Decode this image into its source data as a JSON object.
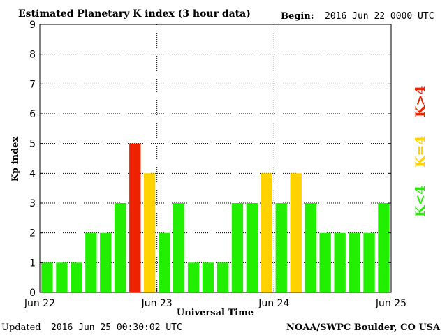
{
  "header": {
    "title": "Estimated Planetary K index (3 hour data)",
    "begin_label": "Begin:",
    "begin_value": "2016 Jun 22 0000 UTC"
  },
  "footer": {
    "updated_label": "Updated",
    "updated_value": "2016 Jun 25 00:30:02 UTC",
    "source": "NOAA/SWPC Boulder, CO USA"
  },
  "legend": {
    "low": "K<4",
    "mid": "K=4",
    "high": "K>4"
  },
  "colors": {
    "low": "#22ee00",
    "mid": "#ffd200",
    "high": "#ee2200"
  },
  "chart_data": {
    "type": "bar",
    "title": "Estimated Planetary K index (3 hour data)",
    "xlabel": "Universal Time",
    "ylabel": "Kp index",
    "ylim": [
      0,
      9
    ],
    "yticks": [
      "0",
      "1",
      "2",
      "3",
      "4",
      "5",
      "6",
      "7",
      "8",
      "9"
    ],
    "xticks": [
      "Jun 22",
      "Jun 23",
      "Jun 24",
      "Jun 25"
    ],
    "grid": "dotted, at each integer Kp and each day boundary",
    "categories": [
      "Jun 22 00",
      "Jun 22 03",
      "Jun 22 06",
      "Jun 22 09",
      "Jun 22 12",
      "Jun 22 15",
      "Jun 22 18",
      "Jun 22 21",
      "Jun 23 00",
      "Jun 23 03",
      "Jun 23 06",
      "Jun 23 09",
      "Jun 23 12",
      "Jun 23 15",
      "Jun 23 18",
      "Jun 23 21",
      "Jun 24 00",
      "Jun 24 03",
      "Jun 24 06",
      "Jun 24 09",
      "Jun 24 12",
      "Jun 24 15",
      "Jun 24 18",
      "Jun 24 21"
    ],
    "values": [
      1,
      1,
      1,
      2,
      2,
      3,
      5,
      4,
      2,
      3,
      1,
      1,
      1,
      3,
      3,
      4,
      3,
      4,
      3,
      2,
      2,
      2,
      2,
      3
    ]
  }
}
